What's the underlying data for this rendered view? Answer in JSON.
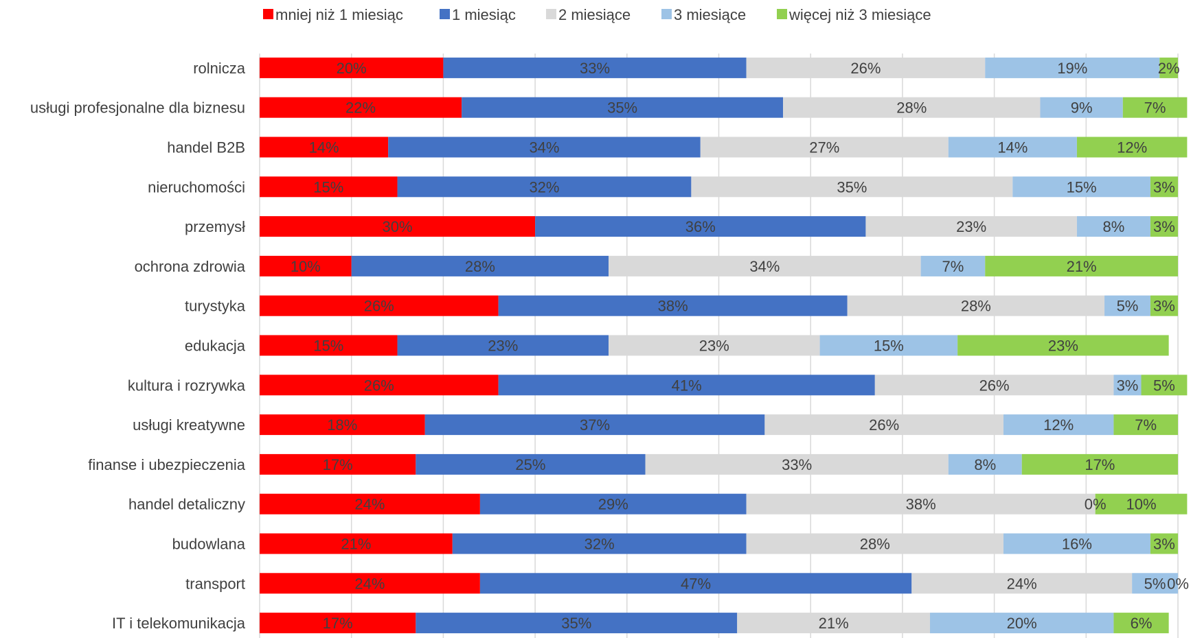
{
  "chart_data": {
    "type": "bar",
    "orientation": "horizontal",
    "stacked": "percent",
    "legend_position": "top",
    "grid": true,
    "xlim": [
      0,
      100
    ],
    "x_unit": "%",
    "categories": [
      "rolnicza",
      "usługi profesjonalne dla biznesu",
      "handel  B2B",
      "nieruchomości",
      "przemysł",
      "ochrona zdrowia",
      "turystyka",
      "edukacja",
      "kultura i rozrywka",
      "usługi kreatywne",
      "finanse i ubezpieczenia",
      "handel detaliczny",
      "budowlana",
      "transport",
      "IT i telekomunikacja"
    ],
    "series": [
      {
        "name": "mniej niż 1 miesiąc",
        "color": "#ff0000",
        "values": [
          20,
          22,
          14,
          15,
          30,
          10,
          26,
          15,
          26,
          18,
          17,
          24,
          21,
          24,
          17
        ],
        "labels": [
          "20%",
          "22%",
          "14%",
          "15%",
          "30%",
          "10%",
          "26%",
          "15%",
          "26%",
          "18%",
          "17%",
          "24%",
          "21%",
          "24%",
          "17%"
        ]
      },
      {
        "name": "1 miesiąc",
        "color": "#4472c4",
        "values": [
          33,
          35,
          34,
          32,
          36,
          28,
          38,
          23,
          41,
          37,
          25,
          29,
          32,
          47,
          35
        ],
        "labels": [
          "33%",
          "35%",
          "34%",
          "32%",
          "36%",
          "28%",
          "38%",
          "23%",
          "41%",
          "37%",
          "25%",
          "29%",
          "32%",
          "47%",
          "35%"
        ]
      },
      {
        "name": "2 miesiące",
        "color": "#d9d9d9",
        "values": [
          26,
          28,
          27,
          35,
          23,
          34,
          28,
          23,
          26,
          26,
          33,
          38,
          28,
          24,
          21
        ],
        "labels": [
          "26%",
          "28%",
          "27%",
          "35%",
          "23%",
          "34%",
          "28%",
          "23%",
          "26%",
          "26%",
          "33%",
          "38%",
          "28%",
          "24%",
          "21%"
        ]
      },
      {
        "name": "3 miesiące",
        "color": "#9dc3e6",
        "values": [
          19,
          9,
          14,
          15,
          8,
          7,
          5,
          15,
          3,
          12,
          8,
          0,
          16,
          5,
          20
        ],
        "labels": [
          "19%",
          "9%",
          "14%",
          "15%",
          "8%",
          "7%",
          "5%",
          "15%",
          "3%",
          "12%",
          "8%",
          "0%",
          "16%",
          "5%",
          "20%"
        ]
      },
      {
        "name": "więcej niż 3 miesiące",
        "color": "#92d050",
        "values": [
          2,
          7,
          12,
          3,
          3,
          21,
          3,
          23,
          5,
          7,
          17,
          10,
          3,
          0,
          6
        ],
        "labels": [
          "2%",
          "7%",
          "12%",
          "3%",
          "3%",
          "21%",
          "3%",
          "23%",
          "5%",
          "7%",
          "17%",
          "10%",
          "3%",
          "0%",
          "6%"
        ]
      }
    ],
    "title": "",
    "xlabel": "",
    "ylabel": ""
  }
}
